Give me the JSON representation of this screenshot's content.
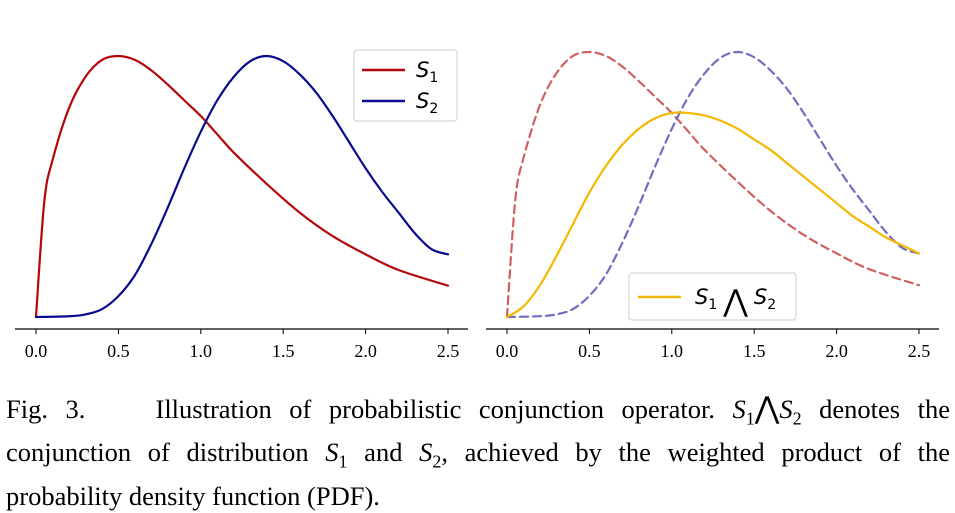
{
  "chart_data": [
    {
      "type": "line",
      "panel": "left",
      "x_ticks": [
        "0.0",
        "0.5",
        "1.0",
        "1.5",
        "2.0",
        "2.5"
      ],
      "xlim": [
        0,
        2.5
      ],
      "series": [
        {
          "name": "S1",
          "label_base": "S",
          "label_sub": "1",
          "color": "#b5070a",
          "style": "solid",
          "x": [
            0,
            0.05,
            0.1,
            0.2,
            0.3,
            0.4,
            0.5,
            0.6,
            0.7,
            0.8,
            0.9,
            1.0,
            1.1,
            1.2,
            1.4,
            1.6,
            1.8,
            2.0,
            2.2,
            2.5
          ],
          "y": [
            0,
            0.44,
            0.6,
            0.8,
            0.92,
            0.985,
            1.0,
            0.985,
            0.945,
            0.89,
            0.83,
            0.77,
            0.7,
            0.63,
            0.51,
            0.4,
            0.31,
            0.24,
            0.18,
            0.12
          ]
        },
        {
          "name": "S2",
          "label_base": "S",
          "label_sub": "2",
          "color": "#0a0a90",
          "style": "solid",
          "x": [
            0,
            0.2,
            0.3,
            0.4,
            0.5,
            0.6,
            0.7,
            0.8,
            0.9,
            1.0,
            1.1,
            1.2,
            1.3,
            1.4,
            1.5,
            1.6,
            1.7,
            1.8,
            1.9,
            2.0,
            2.1,
            2.2,
            2.3,
            2.4,
            2.5
          ],
          "y": [
            0,
            0.003,
            0.01,
            0.03,
            0.08,
            0.16,
            0.28,
            0.42,
            0.57,
            0.71,
            0.83,
            0.92,
            0.98,
            1.0,
            0.98,
            0.93,
            0.86,
            0.77,
            0.67,
            0.57,
            0.48,
            0.4,
            0.32,
            0.26,
            0.24
          ]
        }
      ],
      "legend": "top-right"
    },
    {
      "type": "line",
      "panel": "right",
      "x_ticks": [
        "0.0",
        "0.5",
        "1.0",
        "1.5",
        "2.0",
        "2.5"
      ],
      "xlim": [
        0,
        2.5
      ],
      "series": [
        {
          "name": "S1 (dashed)",
          "color": "#d06060",
          "style": "dashed",
          "x": [
            0,
            0.05,
            0.1,
            0.2,
            0.3,
            0.4,
            0.5,
            0.6,
            0.7,
            0.8,
            0.9,
            1.0,
            1.1,
            1.2,
            1.4,
            1.6,
            1.8,
            2.0,
            2.2,
            2.5
          ],
          "y": [
            0,
            0.44,
            0.6,
            0.8,
            0.92,
            0.985,
            1.0,
            0.985,
            0.945,
            0.89,
            0.83,
            0.77,
            0.7,
            0.63,
            0.51,
            0.4,
            0.31,
            0.24,
            0.18,
            0.12
          ]
        },
        {
          "name": "S2 (dashed)",
          "color": "#6f6fc0",
          "style": "dashed",
          "x": [
            0,
            0.2,
            0.3,
            0.4,
            0.5,
            0.6,
            0.7,
            0.8,
            0.9,
            1.0,
            1.1,
            1.2,
            1.3,
            1.4,
            1.5,
            1.6,
            1.7,
            1.8,
            1.9,
            2.0,
            2.1,
            2.2,
            2.3,
            2.4,
            2.5
          ],
          "y": [
            0,
            0.003,
            0.01,
            0.03,
            0.08,
            0.16,
            0.28,
            0.42,
            0.57,
            0.71,
            0.83,
            0.92,
            0.98,
            1.0,
            0.98,
            0.93,
            0.86,
            0.77,
            0.67,
            0.57,
            0.48,
            0.4,
            0.32,
            0.26,
            0.24
          ]
        },
        {
          "name": "S1 ∧ S2",
          "label_base1": "S",
          "label_sub1": "1",
          "label_op": "⋀",
          "label_base2": "S",
          "label_sub2": "2",
          "color": "#f5b800",
          "style": "solid",
          "x": [
            0,
            0.1,
            0.2,
            0.3,
            0.4,
            0.5,
            0.6,
            0.7,
            0.8,
            0.9,
            1.0,
            1.1,
            1.2,
            1.3,
            1.4,
            1.5,
            1.6,
            1.7,
            1.8,
            1.9,
            2.0,
            2.1,
            2.2,
            2.3,
            2.4,
            2.5
          ],
          "y": [
            0,
            0.04,
            0.12,
            0.23,
            0.35,
            0.47,
            0.57,
            0.65,
            0.71,
            0.75,
            0.77,
            0.77,
            0.76,
            0.74,
            0.71,
            0.67,
            0.63,
            0.58,
            0.53,
            0.48,
            0.43,
            0.38,
            0.34,
            0.3,
            0.27,
            0.24
          ]
        }
      ],
      "legend": "bottom-right"
    }
  ],
  "caption": {
    "fig_label": "Fig. 3.",
    "p1": "Illustration of probabilistic conjunction operator. ",
    "m1": "S",
    "m1_sub": "1",
    "m_op": "⋀",
    "m2": "S",
    "m2_sub": "2",
    "p2": " denotes the conjunction of distribution ",
    "m3": "S",
    "m3_sub": "1",
    "p3": " and ",
    "m4": "S",
    "m4_sub": "2",
    "p4": ", achieved by the weighted product of the probability density function (PDF)."
  }
}
